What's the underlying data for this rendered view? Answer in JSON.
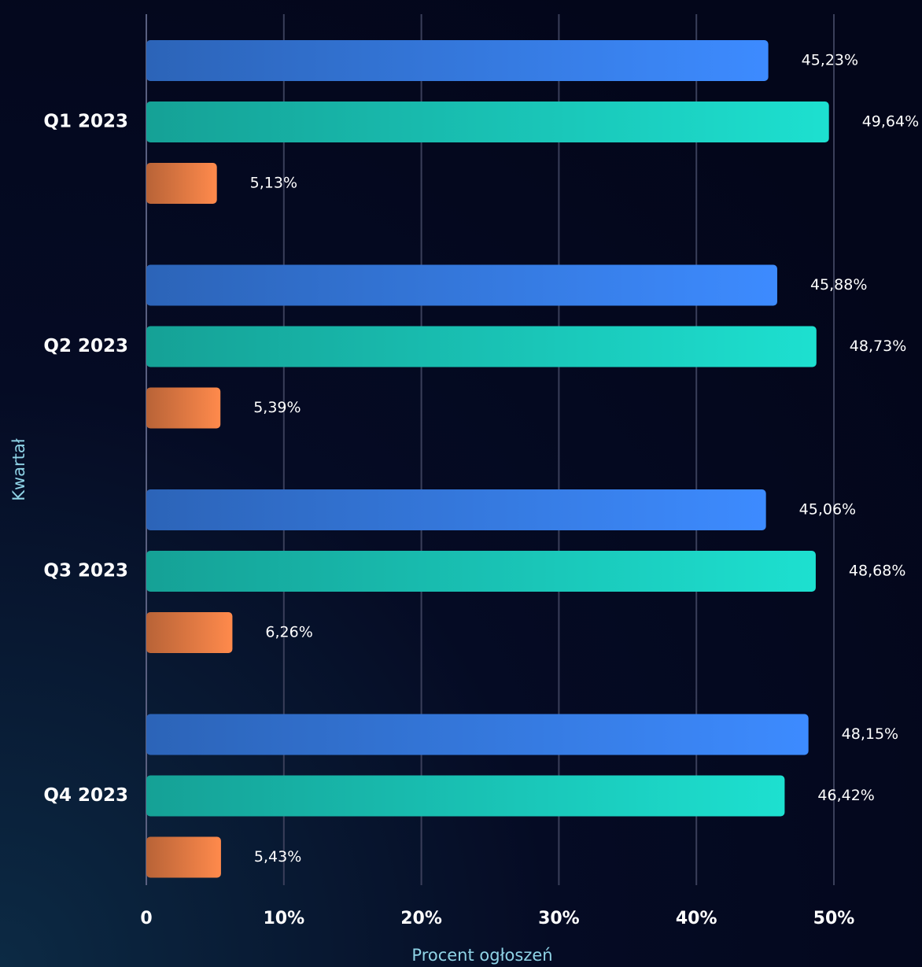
{
  "chart_data": {
    "type": "bar",
    "orientation": "horizontal",
    "x_label": "Procent ogłoszeń",
    "y_label": "Kwartał",
    "categories": [
      "Q1 2023",
      "Q2 2023",
      "Q3 2023",
      "Q4 2023"
    ],
    "series": [
      {
        "color": "#3d8bff",
        "values": [
          45.23,
          45.88,
          45.06,
          48.15
        ],
        "value_labels": [
          "45,23%",
          "45,88%",
          "45,06%",
          "48,15%"
        ]
      },
      {
        "color": "#1de0d0",
        "values": [
          49.64,
          48.73,
          48.68,
          46.42
        ],
        "value_labels": [
          "49,64%",
          "48,73%",
          "48,68%",
          "46,42%"
        ]
      },
      {
        "color": "#ff8a4c",
        "values": [
          5.13,
          5.39,
          6.26,
          5.43
        ],
        "value_labels": [
          "5,13%",
          "5,39%",
          "6,26%",
          "5,43%"
        ]
      }
    ],
    "xlim": [
      0,
      50
    ],
    "xticks": [
      0,
      {
        "value": 10,
        "label": "10%"
      },
      {
        "value": 20,
        "label": "20%"
      },
      {
        "value": 30,
        "label": "30%"
      },
      {
        "value": 40,
        "label": "40%"
      },
      {
        "value": 50,
        "label": "50%"
      }
    ],
    "grid": true
  }
}
